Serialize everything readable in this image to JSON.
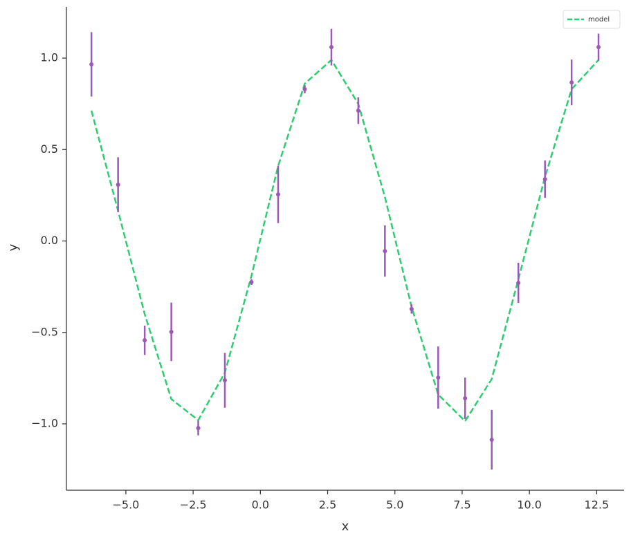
{
  "chart_data": {
    "type": "errorbar",
    "xlabel": "x",
    "ylabel": "y",
    "x": [
      -6.28,
      -5.29,
      -4.3,
      -3.31,
      -2.31,
      -1.32,
      -0.33,
      0.66,
      1.65,
      2.64,
      3.64,
      4.63,
      5.62,
      6.61,
      7.61,
      8.6,
      9.59,
      10.58,
      11.57,
      12.57
    ],
    "series": [
      {
        "name": "model",
        "type": "line",
        "linestyle": "dashed",
        "color": "#2ecc71",
        "values": [
          0.713,
          0.165,
          -0.4,
          -0.865,
          -0.98,
          -0.72,
          -0.19,
          0.41,
          0.86,
          0.99,
          0.75,
          0.24,
          -0.36,
          -0.84,
          -0.985,
          -0.755,
          -0.21,
          0.35,
          0.83,
          0.99
        ]
      },
      {
        "type": "errorbar",
        "color": "#9b59b6",
        "values": [
          0.966,
          0.308,
          -0.543,
          -0.497,
          -1.023,
          -0.762,
          -0.225,
          0.255,
          0.83,
          1.06,
          0.713,
          -0.055,
          -0.372,
          -0.747,
          -0.86,
          -1.087,
          -0.229,
          0.338,
          0.867,
          1.06
        ],
        "errors": [
          0.176,
          0.15,
          0.08,
          0.16,
          0.04,
          0.15,
          0.015,
          0.157,
          0.022,
          0.1,
          0.073,
          0.14,
          0.025,
          0.17,
          0.113,
          0.163,
          0.11,
          0.102,
          0.125,
          0.074
        ]
      }
    ],
    "xlim": [
      -7.21,
      13.52
    ],
    "ylim": [
      -1.363,
      1.28
    ],
    "xticks": [
      {
        "value": -5,
        "label": "−5.0"
      },
      {
        "value": -2.5,
        "label": "−2.5"
      },
      {
        "value": 0,
        "label": "0.0"
      },
      {
        "value": 2.5,
        "label": "2.5"
      },
      {
        "value": 5,
        "label": "5.0"
      },
      {
        "value": 7.5,
        "label": "7.5"
      },
      {
        "value": 10,
        "label": "10.0"
      },
      {
        "value": 12.5,
        "label": "12.5"
      }
    ],
    "yticks": [
      {
        "value": -1,
        "label": "−1.0"
      },
      {
        "value": -0.5,
        "label": "−0.5"
      },
      {
        "value": 0,
        "label": "0.0"
      },
      {
        "value": 0.5,
        "label": "0.5"
      },
      {
        "value": 1,
        "label": "1.0"
      }
    ],
    "grid": false,
    "legend": "upper right"
  }
}
